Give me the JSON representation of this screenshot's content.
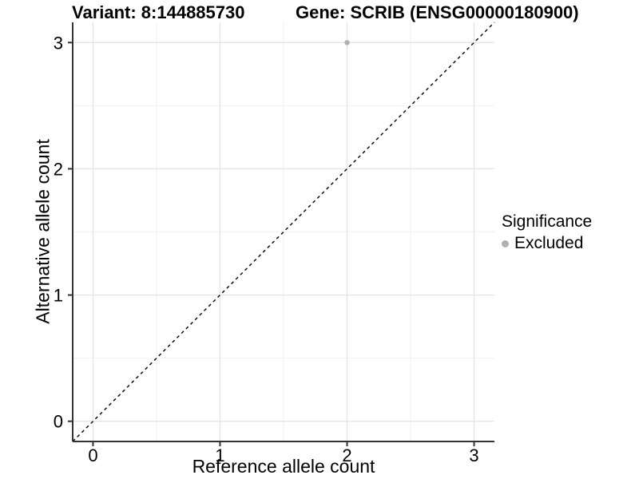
{
  "titles": {
    "variant": "Variant: 8:144885730",
    "gene": "Gene: SCRIB (ENSG00000180900)"
  },
  "chart_data": {
    "type": "scatter",
    "xlabel": "Reference allele count",
    "ylabel": "Alternative allele count",
    "xlim": [
      -0.16,
      3.16
    ],
    "ylim": [
      -0.16,
      3.16
    ],
    "xticks": [
      0,
      1,
      2,
      3
    ],
    "yticks": [
      0,
      1,
      2,
      3
    ],
    "minor_gridlines": [
      0.5,
      1.5,
      2.5
    ],
    "grid": true,
    "reference_line": {
      "type": "identity y=x",
      "style": "dashed",
      "color": "#000000"
    },
    "series": [
      {
        "name": "Excluded",
        "color": "#b0b0b0",
        "points": [
          {
            "x": 2,
            "y": 3
          }
        ]
      }
    ],
    "legend": {
      "title": "Significance",
      "position": "right",
      "entries": [
        {
          "label": "Excluded",
          "color": "#b0b0b0"
        }
      ]
    },
    "colors": {
      "axis_line": "#333333",
      "tick_mark": "#333333",
      "major_grid": "#e5e5e5",
      "minor_grid": "#f2f2f2",
      "text": "#000000",
      "background": "#ffffff"
    }
  }
}
